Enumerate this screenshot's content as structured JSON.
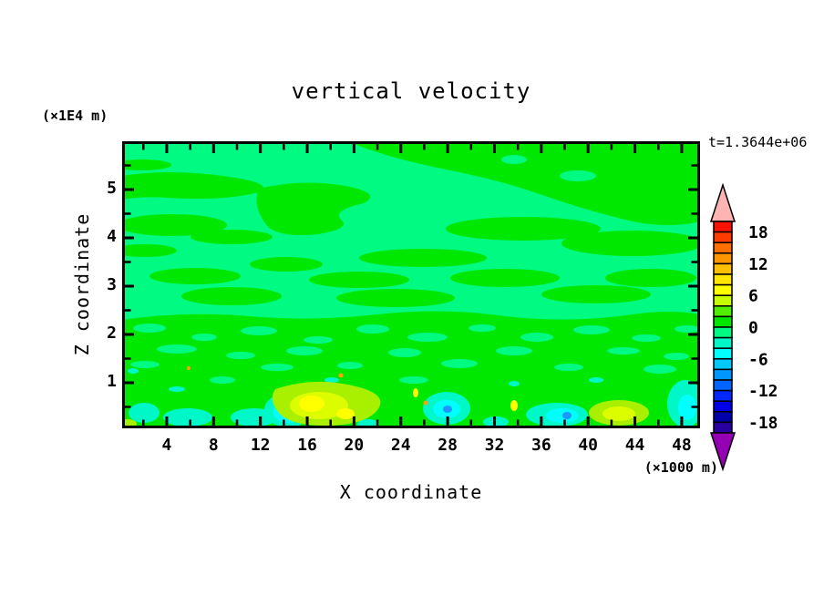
{
  "chart_data": {
    "type": "contour",
    "title": "vertical velocity",
    "time_annotation": "t=1.3644e+06",
    "xlabel": "X coordinate",
    "x_unit": "(×1000 m)",
    "ylabel": "Z coordinate",
    "y_unit": "(×1E4 m)",
    "xlim": [
      0,
      49.6
    ],
    "ylim": [
      0,
      5.95
    ],
    "x_ticks": [
      4,
      8,
      12,
      16,
      20,
      24,
      28,
      32,
      36,
      40,
      44,
      48
    ],
    "x_minor_step": 2,
    "y_ticks": [
      1,
      2,
      3,
      4,
      5
    ],
    "y_minor_step": 0.5,
    "grid": false,
    "legend_position": "colorbar-right",
    "colorbar": {
      "tick_labels": [
        18,
        12,
        6,
        0,
        -6,
        -12,
        -18
      ],
      "level_step": 2,
      "levels_range": [
        -20,
        20
      ],
      "colors_top_to_bottom": [
        "#F81400",
        "#FF3C00",
        "#FF6E00",
        "#FF9600",
        "#FFBE00",
        "#FFE600",
        "#FFFF00",
        "#C8FF00",
        "#50F000",
        "#00E800",
        "#00FA82",
        "#00F8C8",
        "#00FFFF",
        "#00C8FF",
        "#0096FF",
        "#0064FF",
        "#0028FF",
        "#0000E6",
        "#0000AA",
        "#2800A0"
      ],
      "over_color": "#FFB4B4",
      "under_color": "#9600B4"
    },
    "field_summary": [
      "Above z ≈ 1.5e4 m: weak vertical velocity; elongated horizontal bands alternating between 0..+2 (green) and -2..0 (spring green)",
      "Below z ≈ 1e4 m: turbulent layer; updraft cores reaching +6..+8 (chartreuse/yellow) near x ≈ 16-22 and x ≈ 42-46 (×1000 m)",
      "Downdraft cores reaching -6..-10 (cyan/blue) near x ≈ 14, 24, 27, 37 and right edge (×1000 m)"
    ]
  },
  "palette": {
    "spring": "#00FA82",
    "green": "#00E800",
    "teal": "#00F8C8",
    "cyan": "#00FFFF",
    "chartreuse": "#A8F000",
    "ygreen": "#DCFC00",
    "yellow": "#FFFF00",
    "blue": "#1E96FF",
    "orange": "#FFA000",
    "frame": "#000000"
  }
}
